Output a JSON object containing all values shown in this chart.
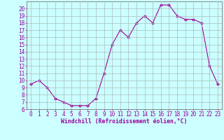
{
  "x": [
    0,
    1,
    2,
    3,
    4,
    5,
    6,
    7,
    8,
    9,
    10,
    11,
    12,
    13,
    14,
    15,
    16,
    17,
    18,
    19,
    20,
    21,
    22,
    23
  ],
  "y": [
    9.5,
    10.0,
    9.0,
    7.5,
    7.0,
    6.5,
    6.5,
    6.5,
    7.5,
    11.0,
    15.0,
    17.0,
    16.0,
    18.0,
    19.0,
    18.0,
    20.5,
    20.5,
    19.0,
    18.5,
    18.5,
    18.0,
    12.0,
    9.5
  ],
  "line_color": "#990099",
  "marker": "D",
  "marker_size": 2.0,
  "bg_color": "#ccffff",
  "grid_color": "#aabbbb",
  "xlabel": "Windchill (Refroidissement éolien,°C)",
  "xlim": [
    -0.5,
    23.5
  ],
  "ylim": [
    6,
    21
  ],
  "yticks": [
    6,
    7,
    8,
    9,
    10,
    11,
    12,
    13,
    14,
    15,
    16,
    17,
    18,
    19,
    20
  ],
  "xticks": [
    0,
    1,
    2,
    3,
    4,
    5,
    6,
    7,
    8,
    9,
    10,
    11,
    12,
    13,
    14,
    15,
    16,
    17,
    18,
    19,
    20,
    21,
    22,
    23
  ],
  "tick_color": "#990099",
  "label_color": "#990099",
  "spine_color": "#777777",
  "font_size": 5.5,
  "xlabel_size": 5.8
}
